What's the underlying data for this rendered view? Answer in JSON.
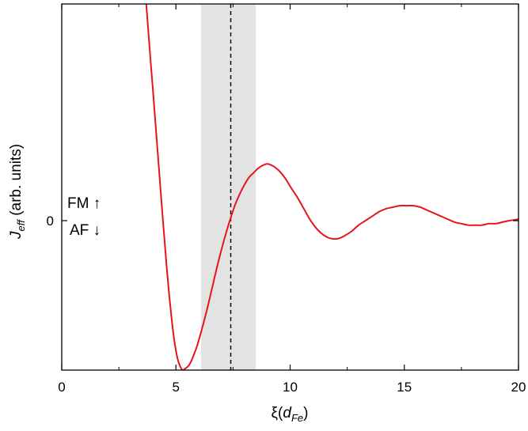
{
  "chart_data": {
    "type": "line",
    "xlabel": "ξ(dFe)",
    "xlabel_parts": {
      "main": "ξ(",
      "italic": "d",
      "sub": "Fe",
      "close": ")"
    },
    "ylabel_parts": {
      "italic": "J",
      "sub": "eff",
      "rest": " (arb. units)"
    },
    "xlim": [
      0,
      20
    ],
    "ylim": [
      -1.0,
      1.45
    ],
    "x_ticks": [
      0,
      5,
      10,
      15,
      20
    ],
    "x_tick_labels": [
      "0",
      "5",
      "10",
      "15",
      "20"
    ],
    "y_ticks": [
      0
    ],
    "y_tick_labels": [
      "0"
    ],
    "grid": false,
    "annotations": {
      "fm": "FM ↑",
      "af": "AF ↓"
    },
    "shaded_region": {
      "x": [
        6.1,
        8.5
      ],
      "color": "#e3e3e3"
    },
    "reference_line": {
      "x": 7.4,
      "style": "dashed",
      "color": "#000000"
    },
    "series": [
      {
        "color": "#e8141b",
        "x": [
          3.7,
          3.8,
          3.9,
          4.0,
          4.1,
          4.2,
          4.3,
          4.4,
          4.5,
          4.6,
          4.7,
          4.8,
          4.9,
          5.0,
          5.1,
          5.2,
          5.3,
          5.4,
          5.5,
          5.6,
          5.7,
          5.8,
          5.9,
          6.0,
          6.2,
          6.4,
          6.6,
          6.8,
          7.0,
          7.2,
          7.4,
          7.6,
          7.8,
          8.0,
          8.2,
          8.4,
          8.6,
          8.8,
          9.0,
          9.2,
          9.4,
          9.6,
          9.8,
          10.0,
          10.3,
          10.6,
          10.9,
          11.2,
          11.5,
          11.8,
          12.1,
          12.4,
          12.7,
          13.0,
          13.3,
          13.6,
          13.9,
          14.2,
          14.5,
          14.8,
          15.1,
          15.4,
          15.7,
          16.0,
          16.3,
          16.6,
          16.9,
          17.2,
          17.5,
          17.8,
          18.1,
          18.4,
          18.7,
          19.0,
          19.3,
          19.6,
          20.0
        ],
        "y": [
          1.45,
          1.25,
          1.05,
          0.86,
          0.66,
          0.46,
          0.26,
          0.06,
          -0.13,
          -0.32,
          -0.49,
          -0.64,
          -0.77,
          -0.87,
          -0.94,
          -0.98,
          -1.0,
          -0.99,
          -0.98,
          -0.96,
          -0.93,
          -0.89,
          -0.85,
          -0.8,
          -0.69,
          -0.57,
          -0.44,
          -0.31,
          -0.19,
          -0.08,
          0.02,
          0.11,
          0.18,
          0.24,
          0.29,
          0.32,
          0.35,
          0.37,
          0.38,
          0.37,
          0.35,
          0.32,
          0.28,
          0.23,
          0.16,
          0.08,
          0.0,
          -0.06,
          -0.1,
          -0.12,
          -0.12,
          -0.1,
          -0.07,
          -0.03,
          0.0,
          0.03,
          0.06,
          0.08,
          0.09,
          0.1,
          0.1,
          0.1,
          0.09,
          0.07,
          0.05,
          0.03,
          0.01,
          -0.01,
          -0.02,
          -0.03,
          -0.03,
          -0.03,
          -0.02,
          -0.02,
          -0.01,
          0.0,
          0.01
        ]
      }
    ]
  }
}
